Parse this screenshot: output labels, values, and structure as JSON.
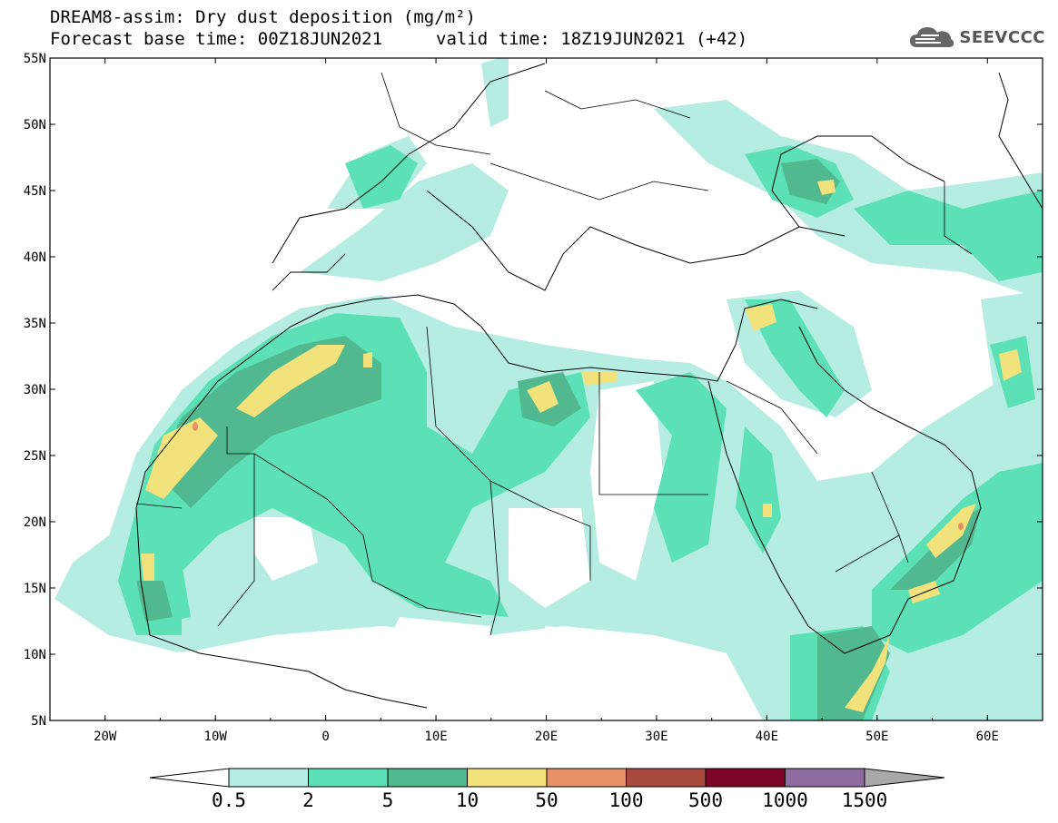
{
  "header": {
    "title": "DREAM8-assim: Dry dust deposition (mg/m²)",
    "base_time": "Forecast base time: 00Z18JUN2021",
    "valid_time": "valid time: 18Z19JUN2021 (+42)"
  },
  "logo": {
    "text": "SEEVCCC",
    "icon": "cloud-logo-icon"
  },
  "axes": {
    "lat_labels": [
      "55N",
      "50N",
      "45N",
      "40N",
      "35N",
      "30N",
      "25N",
      "20N",
      "15N",
      "10N",
      "5N"
    ],
    "lon_labels": [
      "20W",
      "10W",
      "0",
      "10E",
      "20E",
      "30E",
      "40E",
      "50E",
      "60E"
    ],
    "lon_range": [
      -25,
      65
    ],
    "lat_range": [
      5,
      55
    ]
  },
  "colorbar": {
    "levels": [
      "0.5",
      "2",
      "5",
      "10",
      "50",
      "100",
      "500",
      "1000",
      "1500"
    ],
    "colors": [
      "#ffffff",
      "#b6ede3",
      "#5ce1b7",
      "#51b990",
      "#f1e27c",
      "#e89268",
      "#a7493c",
      "#7d0527",
      "#8f6ca0",
      "#a8a8a8"
    ]
  },
  "colors": {
    "light": "#b6ede3",
    "medium": "#5ce1b7",
    "dark": "#51b990",
    "yellow": "#f1e27c",
    "orange": "#e89268"
  }
}
